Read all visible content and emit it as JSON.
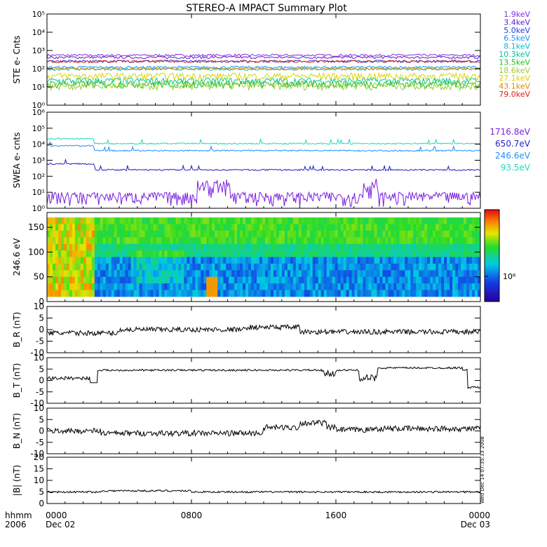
{
  "title": "STEREO-A IMPACT Summary Plot",
  "chart_data": [
    {
      "type": "line",
      "panel": "ste",
      "ylabel": "STE e- Cnts",
      "yscale": "log",
      "ylim": [
        1,
        100000
      ],
      "yticks": [
        "10⁰",
        "10¹",
        "10²",
        "10³",
        "10⁴",
        "10⁵"
      ],
      "series": [
        {
          "name": "1.9keV",
          "color": "#8a2be2",
          "level": 550
        },
        {
          "name": "3.4keV",
          "color": "#5b1fc8",
          "level": 420
        },
        {
          "name": "5.0keV",
          "color": "#1f3fd8",
          "level": 260
        },
        {
          "name": "6.5keV",
          "color": "#1e90ff",
          "level": 120
        },
        {
          "name": "8.1keV",
          "color": "#00bcd4",
          "level": 95
        },
        {
          "name": "10.3keV",
          "color": "#00c896",
          "level": 22
        },
        {
          "name": "13.5keV",
          "color": "#22c022",
          "level": 15
        },
        {
          "name": "18.6keV",
          "color": "#9acd32",
          "level": 12
        },
        {
          "name": "27.1keV",
          "color": "#e0d000",
          "level": 40
        },
        {
          "name": "43.1keV",
          "color": "#e08a00",
          "level": 100
        },
        {
          "name": "79.0keV",
          "color": "#e02020",
          "level": 250
        }
      ]
    },
    {
      "type": "line",
      "panel": "swea",
      "ylabel": "SWEA e- cnts",
      "yscale": "log",
      "ylim": [
        1,
        1000000
      ],
      "yticks": [
        "10⁰",
        "10¹",
        "10²",
        "10³",
        "10⁴",
        "10⁵",
        "10⁶"
      ],
      "series": [
        {
          "name": "1716.8eV",
          "color": "#7b1fe0",
          "base": 4,
          "early": 4
        },
        {
          "name": "650.7eV",
          "color": "#1f1fc8",
          "base": 250,
          "early": 600
        },
        {
          "name": "246.6eV",
          "color": "#1e90ff",
          "base": 4000,
          "early": 8000
        },
        {
          "name": "93.5eV",
          "color": "#20d8c0",
          "base": 11000,
          "early": 22000
        }
      ]
    },
    {
      "type": "heatmap",
      "panel": "pad",
      "ylabel": "246.6 eV",
      "ylim": [
        0,
        180
      ],
      "yticks": [
        0,
        50,
        100,
        150
      ],
      "colorbar_label": "10⁶"
    },
    {
      "type": "line",
      "panel": "br",
      "ylabel": "B_R (nT)",
      "ylim": [
        -10,
        10
      ],
      "yticks": [
        -10,
        -5,
        0,
        5,
        10
      ],
      "color": "#000000"
    },
    {
      "type": "line",
      "panel": "bt",
      "ylabel": "B_T (nT)",
      "ylim": [
        -10,
        10
      ],
      "yticks": [
        -10,
        -5,
        0,
        5,
        10
      ],
      "color": "#000000"
    },
    {
      "type": "line",
      "panel": "bn",
      "ylabel": "B_N (nT)",
      "ylim": [
        -10,
        10
      ],
      "yticks": [
        -10,
        -5,
        0,
        5,
        10
      ],
      "color": "#000000"
    },
    {
      "type": "line",
      "panel": "bmag",
      "ylabel": "|B| (nT)",
      "ylim": [
        0,
        20
      ],
      "yticks": [
        0,
        5,
        10,
        15,
        20
      ],
      "color": "#000000"
    }
  ],
  "xaxis": {
    "label_line1": "hhmm",
    "label_line2": "2006",
    "ticks": [
      {
        "hour": 0,
        "top": "0000",
        "bottom": "Dec 02"
      },
      {
        "hour": 8,
        "top": "0800",
        "bottom": ""
      },
      {
        "hour": 16,
        "top": "1600",
        "bottom": ""
      },
      {
        "hour": 24,
        "top": "0000",
        "bottom": "Dec 03"
      }
    ],
    "range_hours": [
      0,
      24
    ]
  },
  "stamp": "Wed Dec 14 07:35:33 2008"
}
